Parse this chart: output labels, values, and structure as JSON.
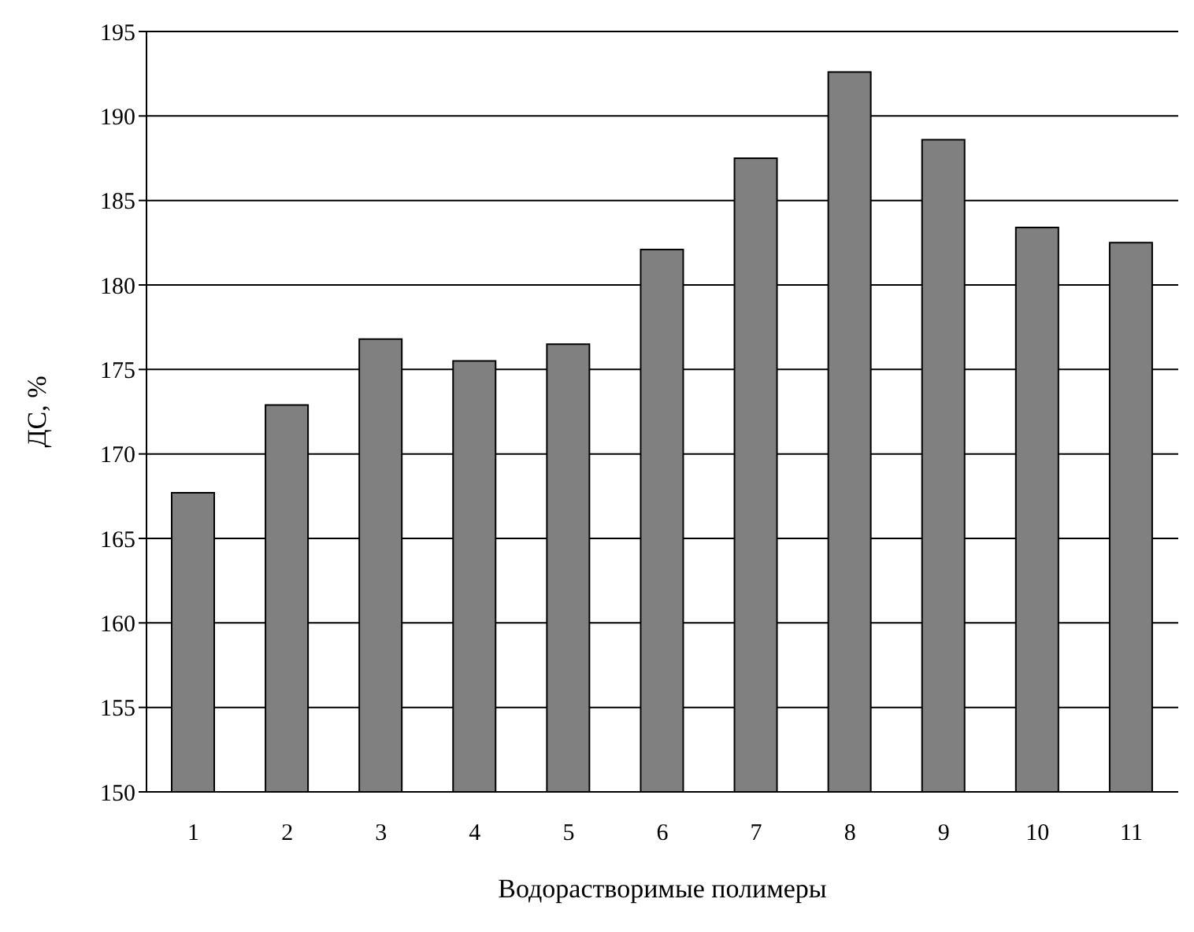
{
  "chart_data": {
    "type": "bar",
    "xlabel": "Водорастворимые полимеры",
    "ylabel": "ДС, %",
    "categories": [
      "1",
      "2",
      "3",
      "4",
      "5",
      "6",
      "7",
      "8",
      "9",
      "10",
      "11"
    ],
    "values": [
      167.7,
      172.9,
      176.8,
      175.5,
      176.5,
      182.1,
      187.5,
      192.6,
      188.6,
      183.4,
      182.5
    ],
    "color": "#808080",
    "ylim": [
      150,
      195
    ],
    "yticks": [
      150,
      155,
      160,
      165,
      170,
      175,
      180,
      185,
      190,
      195
    ],
    "grid": "y"
  }
}
